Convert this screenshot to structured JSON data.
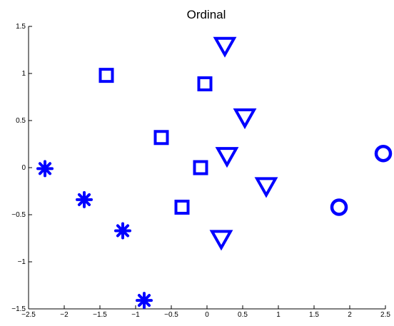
{
  "chart_data": {
    "type": "scatter",
    "title": "Ordinal",
    "xlabel": "",
    "ylabel": "",
    "xlim": [
      -2.5,
      2.5
    ],
    "ylim": [
      -1.5,
      1.5
    ],
    "grid": false,
    "box": "left-bottom",
    "x_ticks": [
      "−2.5",
      "−2",
      "−1.5",
      "−1",
      "−0.5",
      "0",
      "0.5",
      "1",
      "1.5",
      "2",
      "2.5"
    ],
    "x_tick_values": [
      -2.5,
      -2,
      -1.5,
      -1,
      -0.5,
      0,
      0.5,
      1,
      1.5,
      2,
      2.5
    ],
    "y_ticks": [
      "−1.5",
      "−1",
      "−0.5",
      "0",
      "0.5",
      "1",
      "1.5"
    ],
    "y_tick_values": [
      -1.5,
      -1,
      -0.5,
      0,
      0.5,
      1,
      1.5
    ],
    "marker_color": "#0000ff",
    "series": [
      {
        "marker": "asterisk",
        "points": [
          [
            -2.27,
            -0.01
          ],
          [
            -1.72,
            -0.34
          ],
          [
            -1.18,
            -0.67
          ],
          [
            -0.88,
            -1.41
          ]
        ]
      },
      {
        "marker": "square",
        "points": [
          [
            -1.41,
            0.98
          ],
          [
            -0.03,
            0.89
          ],
          [
            -0.64,
            0.32
          ],
          [
            -0.09,
            0.0
          ],
          [
            -0.35,
            -0.42
          ]
        ]
      },
      {
        "marker": "triangle-down",
        "points": [
          [
            0.25,
            1.29
          ],
          [
            0.53,
            0.53
          ],
          [
            0.28,
            0.12
          ],
          [
            0.83,
            -0.2
          ],
          [
            0.2,
            -0.76
          ]
        ]
      },
      {
        "marker": "circle",
        "points": [
          [
            1.85,
            -0.42
          ],
          [
            2.47,
            0.15
          ]
        ]
      }
    ]
  }
}
